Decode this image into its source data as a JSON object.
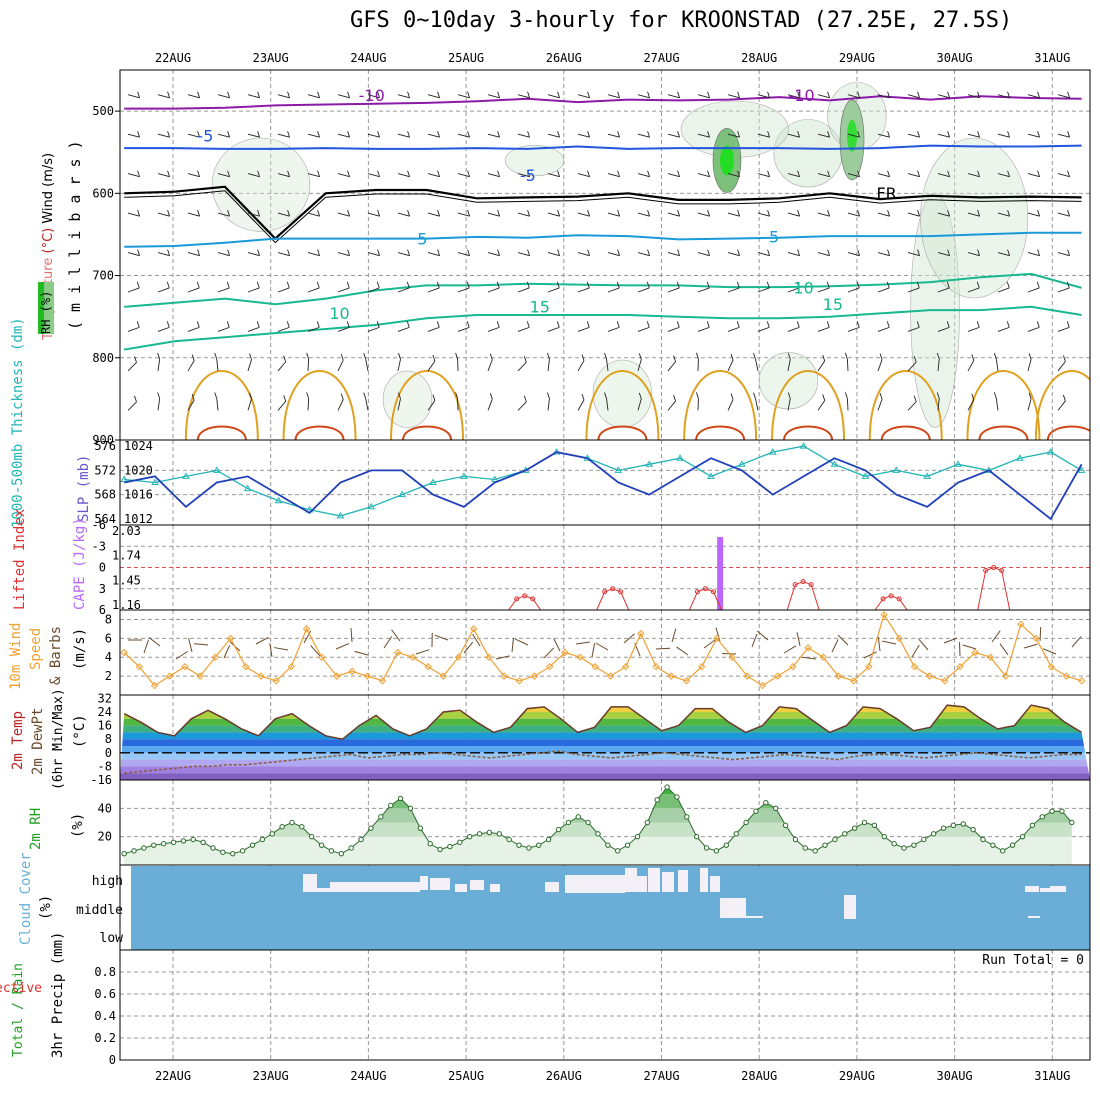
{
  "title": "GFS 0~10day 3-hourly for KROONSTAD (27.25E, 27.5S)",
  "dates": [
    "22AUG",
    "23AUG",
    "24AUG",
    "25AUG",
    "26AUG",
    "27AUG",
    "28AUG",
    "29AUG",
    "30AUG",
    "31AUG"
  ],
  "colors": {
    "grid": "#999999",
    "purple": "#8a1aa8",
    "blue": "#2255dd",
    "sky": "#1a9ad8",
    "teal": "#18b890",
    "orange": "#e0a020",
    "red": "#d04818",
    "freeze": "#000000",
    "thick": "#22b4b4",
    "slp": "#1f3fb8",
    "cape": "#bb66ff",
    "li": "#e03030",
    "wind10": "#f0a030",
    "rh": "#22a022",
    "cloud": "#6aaed8"
  },
  "chart_data": [
    {
      "type": "line",
      "panel": "upper-air",
      "title": "Temperature (°C) / Wind (m/s) / RH (%)",
      "ylabel_parts": [
        "RH (%)",
        "Temperature",
        "(°C)",
        "Wind (m/s)"
      ],
      "ylabel2": "( m i l l i b a r s )",
      "ylim": [
        900,
        450
      ],
      "yticks": [
        "500",
        "600",
        "700",
        "800",
        "900"
      ],
      "contour_labels": [
        "-10",
        "-10",
        "-10",
        "-5",
        "-5",
        "5",
        "5",
        "10",
        "10",
        "15",
        "15",
        "FR"
      ],
      "series": [
        {
          "name": "-10°C",
          "mb": [
            497,
            497,
            496,
            493,
            492,
            491,
            490,
            488,
            485,
            489,
            486,
            487,
            486,
            483,
            487,
            482,
            486,
            482,
            484,
            485
          ]
        },
        {
          "name": "-5°C",
          "mb": [
            545,
            545,
            546,
            546,
            545,
            546,
            546,
            545,
            546,
            543,
            546,
            545,
            545,
            545,
            546,
            545,
            542,
            543,
            543,
            542
          ]
        },
        {
          "name": "FR",
          "mb": [
            600,
            598,
            592,
            655,
            600,
            596,
            596,
            606,
            605,
            604,
            600,
            608,
            608,
            606,
            600,
            607,
            603,
            605,
            604,
            605
          ]
        },
        {
          "name": "5°C",
          "mb": [
            665,
            664,
            660,
            655,
            655,
            655,
            655,
            653,
            654,
            651,
            652,
            656,
            655,
            654,
            652,
            652,
            652,
            650,
            648,
            648
          ]
        },
        {
          "name": "10°C",
          "mb": [
            738,
            733,
            728,
            735,
            728,
            718,
            712,
            712,
            710,
            711,
            712,
            712,
            714,
            714,
            713,
            711,
            708,
            702,
            698,
            715
          ]
        },
        {
          "name": "15°C",
          "mb": [
            790,
            780,
            775,
            770,
            765,
            760,
            752,
            748,
            748,
            748,
            748,
            750,
            752,
            752,
            750,
            746,
            742,
            742,
            738,
            748
          ]
        }
      ]
    },
    {
      "type": "line",
      "panel": "thickness-slp",
      "ylabel": "1000-500mb Thickness (dm)",
      "ylabel2": "SLP (mb)",
      "yticks_left": [
        "576",
        "572",
        "568",
        "564"
      ],
      "yticks_right": [
        "1024",
        "1020",
        "1016",
        "1012"
      ],
      "series": [
        {
          "name": "Thickness",
          "values": [
            570.5,
            570,
            571,
            572,
            569,
            567,
            565.5,
            564.5,
            566,
            568,
            570,
            571,
            570.5,
            572,
            575,
            574,
            572,
            573,
            574,
            571,
            573,
            575,
            576,
            573,
            571,
            572,
            571,
            573,
            572,
            574,
            575,
            572
          ]
        },
        {
          "name": "SLP",
          "values": [
            1018,
            1019,
            1014,
            1018,
            1019,
            1016,
            1013,
            1018,
            1020,
            1020,
            1016,
            1014,
            1018,
            1020,
            1023,
            1022,
            1018,
            1016,
            1019,
            1022,
            1020,
            1016,
            1019,
            1022,
            1020,
            1016,
            1014,
            1018,
            1020,
            1016,
            1012,
            1021
          ]
        }
      ]
    },
    {
      "type": "bar",
      "panel": "cape-li",
      "ylabel": "Lifted Index",
      "ylabel2": "CAPE (J/kg)",
      "yticks_left": [
        "-6",
        "-3",
        "0",
        "3",
        "6"
      ],
      "yticks_right": [
        "2.03",
        "1.74",
        "1.45",
        "1.16"
      ],
      "cape_spike_day": 5.6,
      "li_values": [
        null,
        null,
        null,
        null,
        null,
        null,
        null,
        null,
        null,
        null,
        null,
        null,
        null,
        null,
        null,
        5,
        4,
        3,
        null,
        null,
        null,
        null,
        4,
        3,
        3,
        null,
        null,
        null,
        null,
        6,
        5,
        3,
        3,
        null,
        null,
        null,
        null,
        null,
        null,
        4,
        4,
        null,
        null,
        null,
        null,
        null,
        5,
        4,
        null,
        null,
        null,
        null,
        null,
        null,
        6,
        5,
        null,
        null,
        null,
        null,
        null,
        0,
        0,
        null,
        null,
        null,
        null,
        null,
        null,
        null,
        null,
        null,
        null,
        null,
        null,
        null,
        null,
        null,
        null,
        null
      ]
    },
    {
      "type": "line",
      "panel": "wind10m",
      "ylabel": "10m Wind Speed (m/s) & Barbs",
      "yticks": [
        "8",
        "6",
        "4",
        "2"
      ],
      "ylim": [
        0,
        9
      ],
      "values": [
        4.5,
        3,
        1,
        2,
        3,
        2,
        4,
        6,
        3,
        2,
        1.5,
        3,
        7,
        4,
        2,
        2.5,
        2,
        1.5,
        4.5,
        4,
        3,
        2,
        4,
        7,
        4,
        2,
        1.5,
        2,
        3,
        4.5,
        4,
        3,
        2,
        3,
        6.5,
        3,
        2,
        1.5,
        3,
        6,
        4,
        2,
        1,
        2,
        3,
        5,
        4,
        2,
        1.5,
        3,
        8.5,
        6,
        3,
        2,
        1.5,
        3,
        4.5,
        4,
        2,
        7.5,
        6,
        3,
        2,
        1.5
      ]
    },
    {
      "type": "area",
      "panel": "temp-dewpt",
      "ylabel": "2m Temp / 2m DewPt (6hr Min/Max) (°C)",
      "yticks": [
        "32",
        "24",
        "16",
        "8",
        "0",
        "-8",
        "-16"
      ],
      "ylim": [
        -16,
        34
      ],
      "temp": [
        23,
        18,
        12,
        10,
        20,
        25,
        20,
        14,
        10,
        20,
        23,
        16,
        10,
        8,
        16,
        22,
        14,
        10,
        14,
        24,
        25,
        18,
        12,
        15,
        26,
        27,
        20,
        12,
        15,
        27,
        27,
        20,
        13,
        16,
        26,
        26,
        18,
        12,
        16,
        27,
        26,
        19,
        12,
        16,
        27,
        26,
        20,
        13,
        15,
        28,
        27,
        20,
        14,
        16,
        28,
        26,
        18,
        12
      ],
      "dewpt": [
        -12,
        -11,
        -10,
        -9,
        -8,
        -8,
        -7,
        -7,
        -6,
        -5,
        -4,
        -3,
        -2,
        -1,
        -3,
        -2,
        -1,
        -1,
        0,
        -1,
        -2,
        -3,
        -2,
        -1,
        0,
        1,
        -1,
        -2,
        -3,
        -2,
        -1,
        0,
        -1,
        -2,
        -3,
        -4,
        -3,
        -2,
        -1,
        -2,
        -3,
        -4,
        -2,
        -1,
        -1,
        -2,
        -3,
        -2,
        -1,
        0,
        -1,
        -2,
        -3,
        -2,
        -1,
        -1
      ]
    },
    {
      "type": "area",
      "panel": "rh2m",
      "ylabel": "2m RH (%)",
      "yticks": [
        "40",
        "20"
      ],
      "ylim": [
        0,
        60
      ],
      "values": [
        8,
        10,
        12,
        14,
        15,
        16,
        17,
        18,
        16,
        12,
        9,
        8,
        10,
        14,
        18,
        22,
        27,
        30,
        27,
        20,
        14,
        10,
        8,
        12,
        18,
        26,
        34,
        42,
        47,
        40,
        26,
        15,
        11,
        13,
        16,
        20,
        22,
        23,
        22,
        18,
        14,
        12,
        14,
        18,
        25,
        30,
        34,
        30,
        22,
        14,
        10,
        14,
        20,
        30,
        46,
        55,
        48,
        34,
        20,
        12,
        10,
        14,
        22,
        30,
        38,
        44,
        40,
        28,
        18,
        12,
        10,
        14,
        18,
        22,
        26,
        30,
        28,
        20,
        15,
        12,
        14,
        18,
        22,
        26,
        28,
        29,
        25,
        18,
        14,
        10,
        14,
        20,
        28,
        34,
        38,
        38,
        30
      ]
    },
    {
      "type": "heatmap",
      "panel": "cloud",
      "ylabel": "Cloud Cover (%)",
      "rows": [
        "high",
        "middle",
        "low"
      ]
    },
    {
      "type": "bar",
      "panel": "precip",
      "ylabel": "3hr Precip (mm)",
      "legend": [
        "Total / Rain",
        "Convective"
      ],
      "yticks": [
        "0.8",
        "0.6",
        "0.4",
        "0.2",
        "0"
      ],
      "ylim": [
        0,
        1
      ],
      "run_total": "Run Total = 0",
      "values": []
    }
  ]
}
